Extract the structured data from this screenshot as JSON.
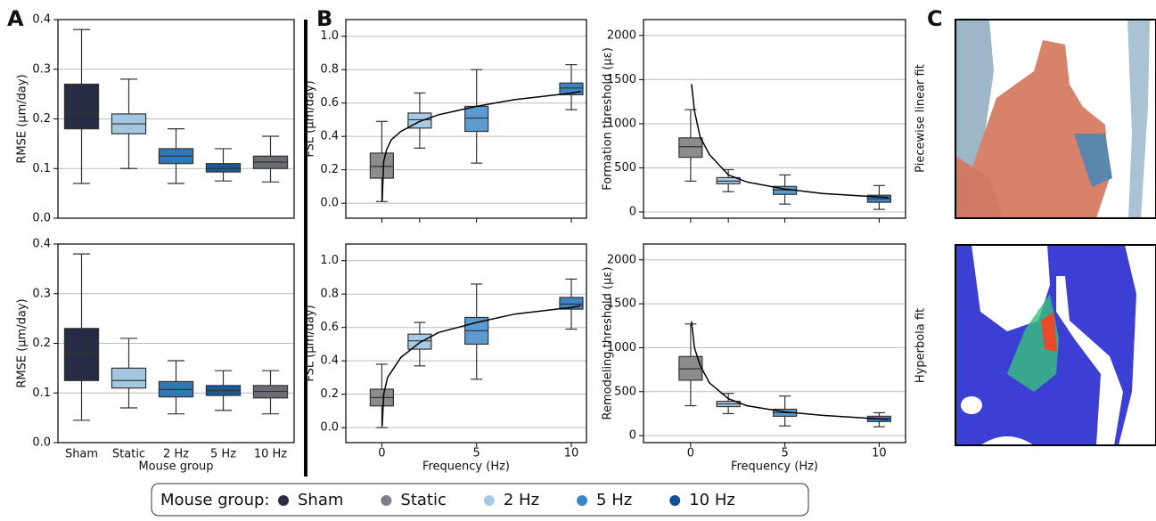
{
  "panels": [
    "A",
    "B",
    "C"
  ],
  "images": [
    "Piecewise linear fit",
    "Hyperbola fit"
  ],
  "legend": {
    "title": "Mouse group:",
    "entries": [
      {
        "name": "Sham",
        "color": "#2a2d48"
      },
      {
        "name": "Static",
        "color": "#7c7f85"
      },
      {
        "name": "2 Hz",
        "color": "#a6cbe7"
      },
      {
        "name": "5 Hz",
        "color": "#3a86c8"
      },
      {
        "name": "10 Hz",
        "color": "#0f4f93"
      }
    ]
  },
  "chart_data": [
    {
      "type": "box",
      "ylabel": "RMSE (µm/day)",
      "ylim": [
        0,
        0.4
      ],
      "yticks": [
        {
          "value": 0,
          "label": "0.0"
        },
        0.1,
        0.2,
        0.3,
        0.4
      ],
      "grid": true,
      "boxes": [
        {
          "whislo": 0.07,
          "q1": 0.18,
          "med": 0.21,
          "q3": 0.27,
          "whishi": 0.38,
          "color": "#272c45"
        },
        {
          "whislo": 0.1,
          "q1": 0.17,
          "med": 0.19,
          "q3": 0.21,
          "whishi": 0.28,
          "color": "#a5c6df"
        },
        {
          "whislo": 0.07,
          "q1": 0.11,
          "med": 0.125,
          "q3": 0.14,
          "whishi": 0.18,
          "color": "#2e78b7"
        },
        {
          "whislo": 0.075,
          "q1": 0.093,
          "med": 0.1,
          "q3": 0.11,
          "whishi": 0.14,
          "color": "#1c5a96"
        },
        {
          "whislo": 0.073,
          "q1": 0.1,
          "med": 0.113,
          "q3": 0.125,
          "whishi": 0.165,
          "color": "#6a6e74"
        }
      ]
    },
    {
      "type": "box",
      "ylabel": "RMSE (µm/day)",
      "xlabel": "Mouse group",
      "ylim": [
        0,
        0.4
      ],
      "yticks": [
        {
          "value": 0,
          "label": "0.0"
        },
        0.1,
        0.2,
        0.3,
        0.4
      ],
      "grid": true,
      "categories": [
        "Sham",
        "Static",
        "2 Hz",
        "5 Hz",
        "10 Hz"
      ],
      "boxes": [
        {
          "whislo": 0.045,
          "q1": 0.125,
          "med": 0.18,
          "q3": 0.23,
          "whishi": 0.38,
          "color": "#272c45"
        },
        {
          "whislo": 0.07,
          "q1": 0.11,
          "med": 0.125,
          "q3": 0.15,
          "whishi": 0.21,
          "color": "#a5c6df"
        },
        {
          "whislo": 0.058,
          "q1": 0.092,
          "med": 0.107,
          "q3": 0.123,
          "whishi": 0.165,
          "color": "#2e78b7"
        },
        {
          "whislo": 0.065,
          "q1": 0.095,
          "med": 0.105,
          "q3": 0.115,
          "whishi": 0.145,
          "color": "#1c5a96"
        },
        {
          "whislo": 0.058,
          "q1": 0.09,
          "med": 0.103,
          "q3": 0.115,
          "whishi": 0.145,
          "color": "#6a6e74"
        }
      ]
    },
    {
      "type": "box",
      "ylabel": "FSL (µm/day)",
      "ylim": [
        -0.09,
        1.1
      ],
      "xlim": [
        -1.9,
        10.8
      ],
      "yticks": [
        {
          "value": 0,
          "label": "0.0"
        },
        0.2,
        0.4,
        0.6,
        0.8,
        {
          "value": 1,
          "label": "1.0"
        }
      ],
      "grid": true,
      "x": [
        0,
        2,
        5,
        10
      ],
      "boxes": [
        {
          "whislo": 0.01,
          "q1": 0.15,
          "med": 0.22,
          "q3": 0.3,
          "whishi": 0.49,
          "color": "#8c8c8c"
        },
        {
          "whislo": 0.33,
          "q1": 0.45,
          "med": 0.5,
          "q3": 0.54,
          "whishi": 0.66,
          "color": "#a8cbe5"
        },
        {
          "whislo": 0.24,
          "q1": 0.43,
          "med": 0.51,
          "q3": 0.58,
          "whishi": 0.8,
          "color": "#5b9bd0"
        },
        {
          "whislo": 0.56,
          "q1": 0.65,
          "med": 0.69,
          "q3": 0.72,
          "whishi": 0.83,
          "color": "#3e83c2"
        }
      ],
      "curve": {
        "x": [
          0.02,
          0.1,
          0.25,
          0.5,
          1,
          2,
          3,
          5,
          7,
          10,
          10.5
        ],
        "y": [
          0.01,
          0.25,
          0.32,
          0.38,
          0.43,
          0.49,
          0.53,
          0.58,
          0.62,
          0.66,
          0.67
        ]
      }
    },
    {
      "type": "box",
      "ylabel": "Formation threshold (µε)",
      "ylim": [
        -70,
        2180
      ],
      "xlim": [
        -2.5,
        11.4
      ],
      "yticks": [
        0,
        500,
        1000,
        1500,
        2000
      ],
      "grid": true,
      "x": [
        0,
        2,
        5,
        10
      ],
      "boxes": [
        {
          "whislo": 350,
          "q1": 620,
          "med": 740,
          "q3": 840,
          "whishi": 1160,
          "color": "#8c8c8c"
        },
        {
          "whislo": 230,
          "q1": 320,
          "med": 350,
          "q3": 390,
          "whishi": 480,
          "color": "#a8cbe5"
        },
        {
          "whislo": 90,
          "q1": 200,
          "med": 250,
          "q3": 290,
          "whishi": 420,
          "color": "#5b9bd0"
        },
        {
          "whislo": 30,
          "q1": 110,
          "med": 150,
          "q3": 190,
          "whishi": 300,
          "color": "#3e83c2"
        }
      ],
      "curve": {
        "x": [
          0.05,
          0.2,
          0.5,
          1,
          2,
          3,
          5,
          7,
          10,
          10.5
        ],
        "y": [
          1450,
          1150,
          850,
          650,
          420,
          340,
          260,
          210,
          170,
          165
        ]
      }
    },
    {
      "type": "box",
      "ylabel": "FSL (µm/day)",
      "xlabel": "Frequency (Hz)",
      "ylim": [
        -0.09,
        1.1
      ],
      "xlim": [
        -1.9,
        10.8
      ],
      "yticks": [
        {
          "value": 0,
          "label": "0.0"
        },
        0.2,
        0.4,
        0.6,
        0.8,
        {
          "value": 1,
          "label": "1.0"
        }
      ],
      "grid": true,
      "x": [
        0,
        2,
        5,
        10
      ],
      "xticks": [
        0,
        5,
        10
      ],
      "boxes": [
        {
          "whislo": 0,
          "q1": 0.13,
          "med": 0.18,
          "q3": 0.23,
          "whishi": 0.38,
          "color": "#8c8c8c"
        },
        {
          "whislo": 0.37,
          "q1": 0.47,
          "med": 0.52,
          "q3": 0.56,
          "whishi": 0.63,
          "color": "#a8cbe5"
        },
        {
          "whislo": 0.29,
          "q1": 0.5,
          "med": 0.58,
          "q3": 0.66,
          "whishi": 0.86,
          "color": "#5b9bd0"
        },
        {
          "whislo": 0.59,
          "q1": 0.71,
          "med": 0.74,
          "q3": 0.78,
          "whishi": 0.89,
          "color": "#3e83c2"
        }
      ],
      "curve": {
        "x": [
          0.02,
          0.1,
          0.3,
          1,
          2,
          3,
          5,
          7,
          10,
          10.5
        ],
        "y": [
          0.01,
          0.2,
          0.3,
          0.42,
          0.51,
          0.57,
          0.63,
          0.68,
          0.72,
          0.73
        ]
      }
    },
    {
      "type": "box",
      "ylabel": "Remodeling threshold (µε)",
      "xlabel": "Frequency (Hz)",
      "ylim": [
        -80,
        2180
      ],
      "xlim": [
        -2.5,
        11.4
      ],
      "yticks": [
        0,
        500,
        1000,
        1500,
        2000
      ],
      "grid": true,
      "x": [
        0,
        2,
        5,
        10
      ],
      "xticks": [
        0,
        5,
        10
      ],
      "boxes": [
        {
          "whislo": 340,
          "q1": 630,
          "med": 760,
          "q3": 900,
          "whishi": 1270,
          "color": "#8c8c8c"
        },
        {
          "whislo": 250,
          "q1": 330,
          "med": 360,
          "q3": 390,
          "whishi": 480,
          "color": "#a8cbe5"
        },
        {
          "whislo": 110,
          "q1": 220,
          "med": 260,
          "q3": 300,
          "whishi": 450,
          "color": "#5b9bd0"
        },
        {
          "whislo": 100,
          "q1": 160,
          "med": 190,
          "q3": 220,
          "whishi": 260,
          "color": "#3e83c2"
        }
      ],
      "curve": {
        "x": [
          0.05,
          0.2,
          0.5,
          1,
          2,
          3,
          5,
          7,
          10,
          10.5
        ],
        "y": [
          1300,
          1000,
          800,
          600,
          420,
          340,
          270,
          230,
          190,
          185
        ]
      }
    }
  ]
}
